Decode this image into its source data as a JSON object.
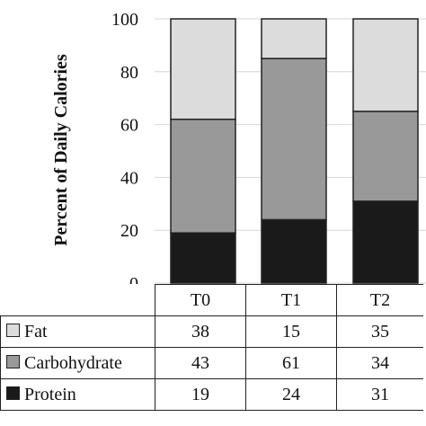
{
  "chart_data": {
    "type": "bar",
    "stacked": true,
    "ylabel": "Percent of Daily Calories",
    "ylim": [
      0,
      100
    ],
    "yticks": [
      0,
      20,
      40,
      60,
      80,
      100
    ],
    "grid": true,
    "categories": [
      "T0",
      "T1",
      "T2"
    ],
    "series": [
      {
        "name": "Protein",
        "color": "#1a1a1a",
        "values": [
          19,
          24,
          31
        ]
      },
      {
        "name": "Carbohydrate",
        "color": "#999999",
        "values": [
          43,
          61,
          34
        ]
      },
      {
        "name": "Fat",
        "color": "#dcdcdc",
        "values": [
          38,
          15,
          35
        ]
      }
    ],
    "table_rows": [
      "Fat",
      "Carbohydrate",
      "Protein"
    ]
  }
}
